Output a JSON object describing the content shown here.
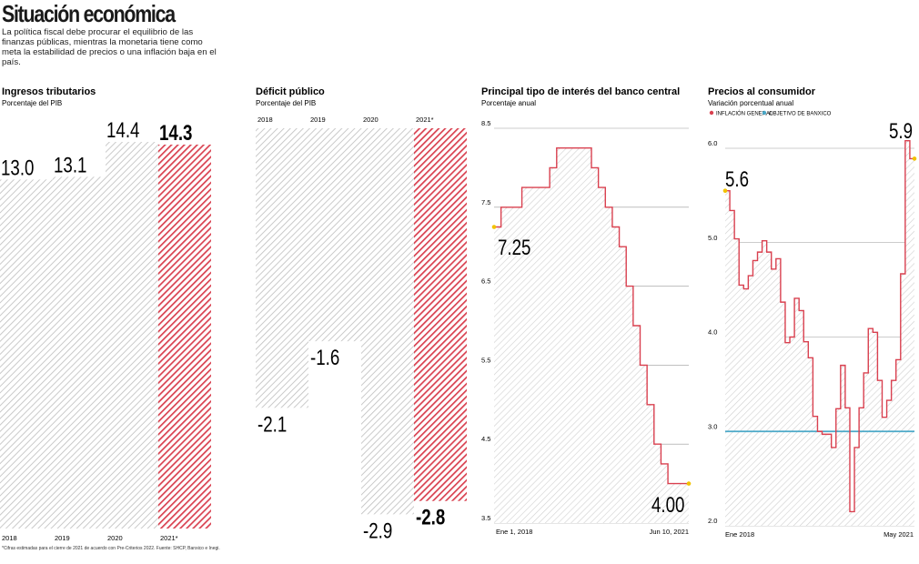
{
  "header": {
    "title": "Situación económica",
    "intro": "La política fiscal debe procurar el equilibrio de las finanzas públicas, mientras la monetaria tiene como meta la estabilidad de precios o una inflación baja en el país."
  },
  "colors": {
    "highlight": "#d9404f",
    "hatch": "#bdbdbd",
    "line": "#d9404f",
    "target": "#4aa8c8",
    "marker": "#f2c200"
  },
  "chart_data": [
    {
      "type": "bar",
      "title": "Ingresos tributarios",
      "subtitle": "Porcentaje del PIB",
      "categories": [
        "2018",
        "2019",
        "2020",
        "2021*"
      ],
      "values": [
        13.0,
        13.1,
        14.4,
        14.3
      ],
      "value_labels": [
        "13.0",
        "13.1",
        "14.4",
        "14.3"
      ],
      "highlight_index": 3
    },
    {
      "type": "bar",
      "title": "Déficit público",
      "subtitle": "Porcentaje del PIB",
      "categories": [
        "2018",
        "2019",
        "2020",
        "2021*"
      ],
      "values": [
        -2.1,
        -1.6,
        -2.9,
        -2.8
      ],
      "value_labels": [
        "-2.1",
        "-1.6",
        "-2.9",
        "-2.8"
      ],
      "highlight_index": 3
    },
    {
      "type": "line",
      "title": "Principal tipo de interés del banco central",
      "subtitle": "Porcentaje anual",
      "y_ticks": [
        "8.5",
        "7.5",
        "6.5",
        "5.5",
        "4.5",
        "3.5"
      ],
      "ylim": [
        3.5,
        8.5
      ],
      "x_labels": [
        "Ene 1, 2018",
        "Jun 10, 2021"
      ],
      "start_label": "7.25",
      "end_label": "4.00",
      "step": true,
      "series": [
        {
          "values": [
            7.25,
            7.5,
            7.5,
            7.5,
            7.75,
            7.75,
            7.75,
            7.75,
            8.0,
            8.25,
            8.25,
            8.25,
            8.25,
            8.25,
            8.0,
            7.75,
            7.5,
            7.25,
            7.0,
            6.5,
            6.0,
            5.5,
            5.0,
            4.5,
            4.25,
            4.0,
            4.0,
            4.0
          ]
        }
      ]
    },
    {
      "type": "line",
      "title": "Precios al consumidor",
      "subtitle": "Variación porcentual anual",
      "legend": [
        {
          "label": "INFLACIÓN GENERAL",
          "color": "#d9404f"
        },
        {
          "label": "OBJETIVO DE BANXICO",
          "color": "#4aa8c8"
        }
      ],
      "y_ticks": [
        "6.0",
        "5.0",
        "4.0",
        "3.0",
        "2.0"
      ],
      "ylim": [
        2.0,
        6.0
      ],
      "x_labels": [
        "Ene 2018",
        "May 2021"
      ],
      "start_label": "5.6",
      "end_label": "5.9",
      "target": 3.0,
      "step": true,
      "series": [
        {
          "values": [
            5.55,
            5.34,
            5.04,
            4.55,
            4.51,
            4.65,
            4.81,
            4.9,
            5.02,
            4.9,
            4.72,
            4.83,
            4.37,
            3.94,
            4.0,
            4.41,
            4.28,
            3.95,
            3.78,
            3.16,
            3.0,
            2.97,
            2.97,
            2.83,
            3.24,
            3.7,
            3.25,
            2.15,
            2.83,
            3.25,
            3.62,
            4.09,
            4.05,
            3.54,
            3.15,
            3.33,
            3.54,
            3.76,
            4.67,
            6.08,
            5.89
          ]
        }
      ]
    }
  ],
  "footnote": "*Cifras estimadas para el cierre de 2021 de acuerdo con Pre-Criterios 2022. Fuente: SHCP, Banxico e Inegi."
}
